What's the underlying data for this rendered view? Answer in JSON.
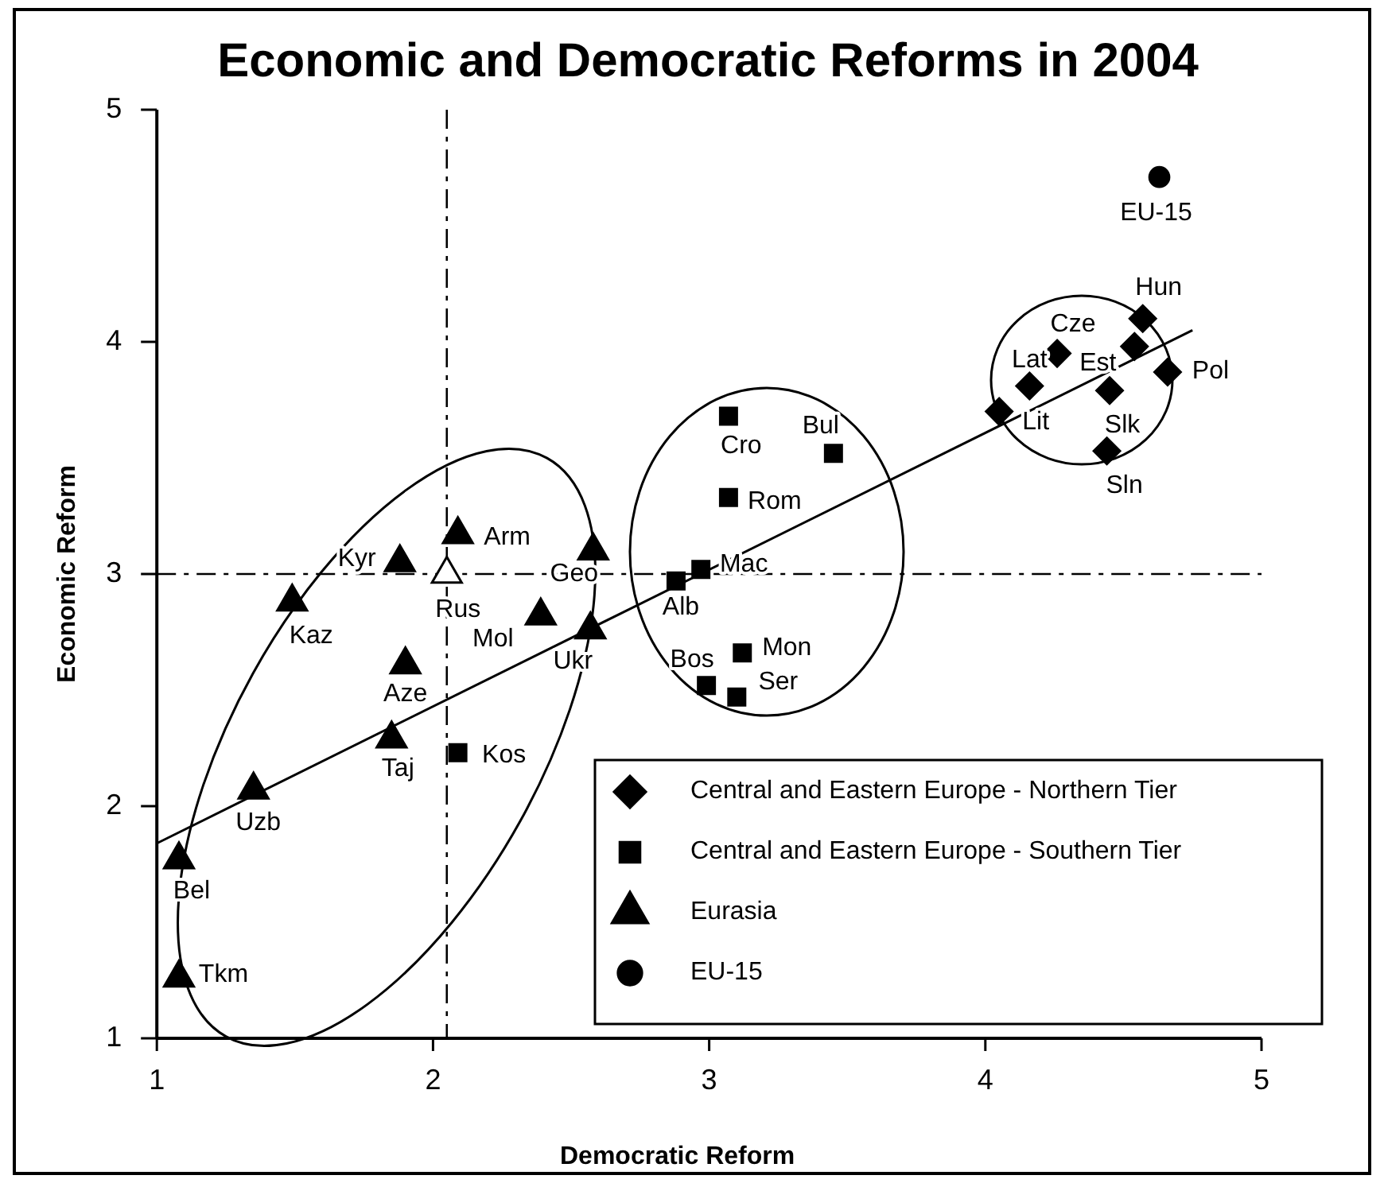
{
  "chart_data": {
    "type": "scatter",
    "title": "Economic and Democratic Reforms in 2004",
    "xlabel": "Democratic Reform",
    "ylabel": "Economic Reform",
    "xlim": [
      1,
      5
    ],
    "ylim": [
      1,
      5
    ],
    "xticks": [
      1,
      2,
      3,
      4,
      5
    ],
    "yticks": [
      1,
      2,
      3,
      4,
      5
    ],
    "legend": "bottom right",
    "series": [
      {
        "name": "Central and Eastern Europe - Northern Tier",
        "color": "#000000",
        "marker": "diamond",
        "x": [
          4.57,
          4.26,
          4.54,
          4.66,
          4.16,
          4.45,
          4.05,
          4.44
        ],
        "values": [
          4.1,
          3.95,
          3.98,
          3.87,
          3.81,
          3.79,
          3.7,
          3.53
        ]
      },
      {
        "name": "Central and Eastern Europe - Southern Tier",
        "color": "#000000",
        "marker": "square",
        "x": [
          3.07,
          3.45,
          3.07,
          2.97,
          2.88,
          3.12,
          2.99,
          3.1,
          2.09
        ],
        "values": [
          3.68,
          3.52,
          3.33,
          3.02,
          2.97,
          2.66,
          2.52,
          2.47,
          2.23
        ]
      },
      {
        "name": "Eurasia",
        "color": "#000000",
        "marker": "triangle",
        "x": [
          1.88,
          2.09,
          2.58,
          1.49,
          2.39,
          2.57,
          1.9,
          1.85,
          1.35,
          1.08,
          1.08
        ],
        "values": [
          3.05,
          3.17,
          3.1,
          2.88,
          2.82,
          2.76,
          2.61,
          2.29,
          2.07,
          1.77,
          1.26
        ]
      },
      {
        "name": "EU-15",
        "color": "#000000",
        "marker": "circle",
        "x": [
          4.63
        ],
        "values": [
          4.71
        ]
      },
      {
        "color": "#ffffff",
        "marker": "triangle",
        "x": [
          2.05
        ],
        "values": [
          3.0
        ]
      },
      {
        "type": "line",
        "color": "#000000",
        "x": [
          1,
          4.75
        ],
        "values": [
          1.84,
          4.05
        ]
      }
    ],
    "ref_lines": [
      {
        "axis": "x",
        "value": 2.05,
        "color": "#000000",
        "line_style": "dashed"
      },
      {
        "axis": "y",
        "value": 3,
        "color": "#000000",
        "line_style": "dashed"
      }
    ],
    "annotations": [
      {
        "text": "Hun",
        "x": 4.57,
        "y": 4.1
      },
      {
        "text": "Cze",
        "x": 4.26,
        "y": 3.95
      },
      {
        "text": "Est",
        "x": 4.54,
        "y": 3.98
      },
      {
        "text": "Pol",
        "x": 4.66,
        "y": 3.87
      },
      {
        "text": "Lat",
        "x": 4.16,
        "y": 3.81
      },
      {
        "text": "Slk",
        "x": 4.45,
        "y": 3.79
      },
      {
        "text": "Lit",
        "x": 4.05,
        "y": 3.7
      },
      {
        "text": "Sln",
        "x": 4.44,
        "y": 3.53
      },
      {
        "text": "Cro",
        "x": 3.07,
        "y": 3.68
      },
      {
        "text": "Bul",
        "x": 3.45,
        "y": 3.52
      },
      {
        "text": "Rom",
        "x": 3.07,
        "y": 3.33
      },
      {
        "text": "Mac",
        "x": 2.97,
        "y": 3.02
      },
      {
        "text": "Alb",
        "x": 2.88,
        "y": 2.97
      },
      {
        "text": "Mon",
        "x": 3.12,
        "y": 2.66
      },
      {
        "text": "Bos",
        "x": 2.99,
        "y": 2.52
      },
      {
        "text": "Ser",
        "x": 3.1,
        "y": 2.47
      },
      {
        "text": "Kos",
        "x": 2.09,
        "y": 2.23
      },
      {
        "text": "Kyr",
        "x": 1.88,
        "y": 3.05
      },
      {
        "text": "Arm",
        "x": 2.09,
        "y": 3.17
      },
      {
        "text": "Geo",
        "x": 2.58,
        "y": 3.1
      },
      {
        "text": "Kaz",
        "x": 1.49,
        "y": 2.88
      },
      {
        "text": "Mol",
        "x": 2.39,
        "y": 2.82
      },
      {
        "text": "Ukr",
        "x": 2.57,
        "y": 2.76
      },
      {
        "text": "Aze",
        "x": 1.9,
        "y": 2.61
      },
      {
        "text": "Taj",
        "x": 1.85,
        "y": 2.29
      },
      {
        "text": "Uzb",
        "x": 1.35,
        "y": 2.07
      },
      {
        "text": "Bel",
        "x": 1.08,
        "y": 1.77
      },
      {
        "text": "Tkm",
        "x": 1.08,
        "y": 1.26
      },
      {
        "text": "EU-15",
        "x": 4.63,
        "y": 4.71
      },
      {
        "text": "Rus",
        "x": 2.05,
        "y": 3.0
      }
    ]
  }
}
